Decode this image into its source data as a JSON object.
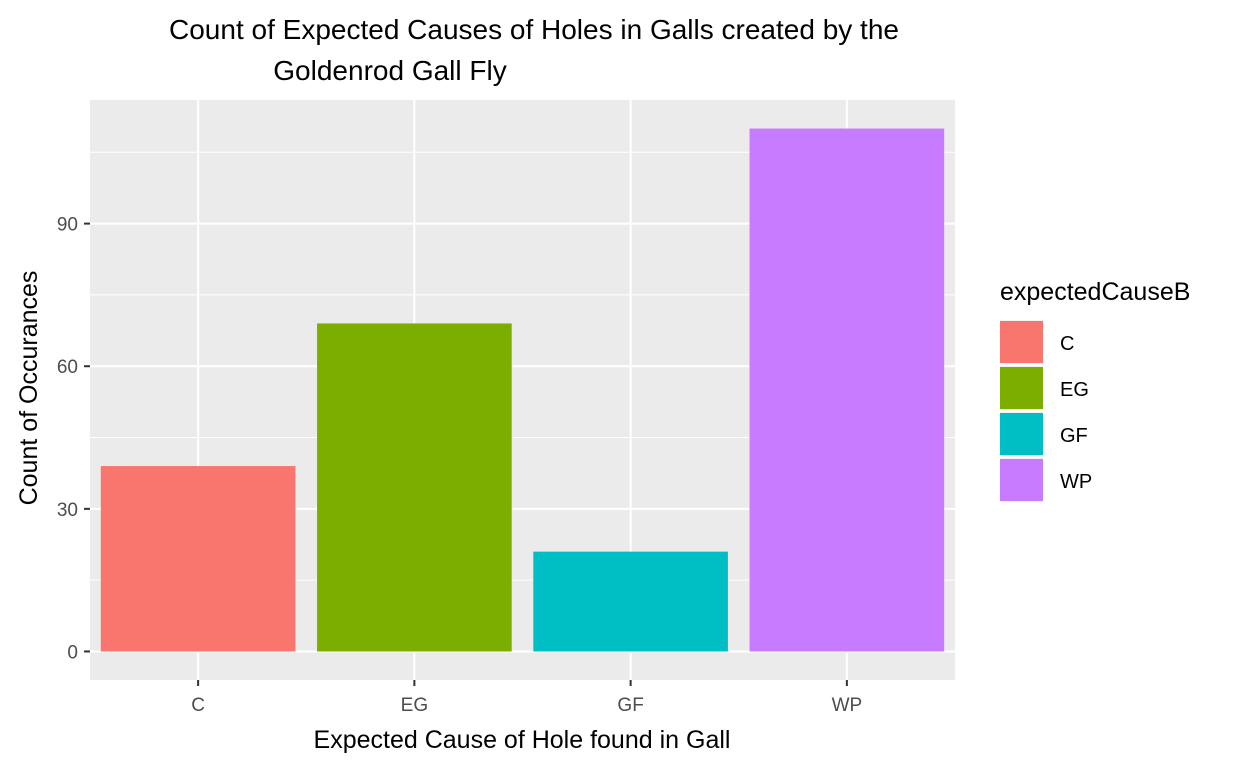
{
  "chart_data": {
    "type": "bar",
    "title_lines": [
      "Count of Expected Causes of Holes in Galls created by the",
      "Goldenrod Gall Fly"
    ],
    "xlabel": "Expected Cause of Hole found in Gall",
    "ylabel": "Count of Occurances",
    "categories": [
      "C",
      "EG",
      "GF",
      "WP"
    ],
    "values": [
      39,
      69,
      21,
      110
    ],
    "ylim": [
      -6,
      116
    ],
    "yticks": [
      0,
      30,
      60,
      90
    ],
    "ytick_labels": [
      "0",
      "30",
      "60",
      "90"
    ],
    "grid": true,
    "legend": {
      "title": "expectedCauseB",
      "placement": "right",
      "entries": [
        "C",
        "EG",
        "GF",
        "WP"
      ]
    },
    "colors": [
      "#F8766D",
      "#7CAE00",
      "#00BFC4",
      "#C77CFF"
    ],
    "panel_background": "#EBEBEB",
    "grid_color": "#FFFFFF"
  }
}
